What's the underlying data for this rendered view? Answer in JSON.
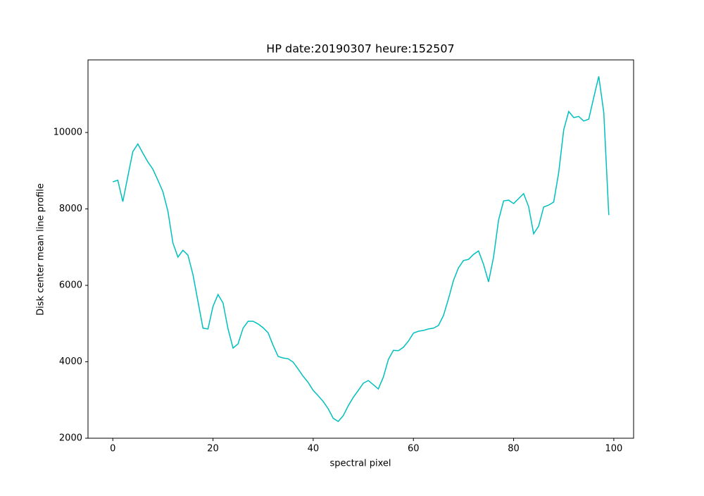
{
  "chart_data": {
    "type": "line",
    "title": "HP date:20190307 heure:152507",
    "x_label": "spectral pixel",
    "y_label": "Disk center mean line profile",
    "x": [
      0,
      1,
      2,
      3,
      4,
      5,
      6,
      7,
      8,
      9,
      10,
      11,
      12,
      13,
      14,
      15,
      16,
      17,
      18,
      19,
      20,
      21,
      22,
      23,
      24,
      25,
      26,
      27,
      28,
      29,
      30,
      31,
      32,
      33,
      34,
      35,
      36,
      37,
      38,
      39,
      40,
      41,
      42,
      43,
      44,
      45,
      46,
      47,
      48,
      49,
      50,
      51,
      52,
      53,
      54,
      55,
      56,
      57,
      58,
      59,
      60,
      61,
      62,
      63,
      64,
      65,
      66,
      67,
      68,
      69,
      70,
      71,
      72,
      73,
      74,
      75,
      76,
      77,
      78,
      79,
      80,
      81,
      82,
      83,
      84,
      85,
      86,
      87,
      88,
      89,
      90,
      91,
      92,
      93,
      94,
      95,
      96,
      97,
      98,
      99
    ],
    "series": [
      {
        "color": "#00bfbf",
        "values": [
          8710,
          8750,
          8190,
          8850,
          9500,
          9700,
          9460,
          9230,
          9040,
          8750,
          8450,
          7940,
          7110,
          6740,
          6920,
          6790,
          6280,
          5580,
          4880,
          4860,
          5450,
          5760,
          5540,
          4860,
          4360,
          4470,
          4880,
          5060,
          5060,
          4990,
          4890,
          4760,
          4430,
          4140,
          4100,
          4080,
          3990,
          3810,
          3620,
          3460,
          3250,
          3110,
          2960,
          2770,
          2520,
          2440,
          2590,
          2850,
          3070,
          3250,
          3440,
          3510,
          3400,
          3290,
          3600,
          4060,
          4300,
          4290,
          4380,
          4540,
          4750,
          4800,
          4820,
          4860,
          4880,
          4950,
          5210,
          5650,
          6130,
          6460,
          6650,
          6680,
          6810,
          6900,
          6550,
          6090,
          6740,
          7710,
          8210,
          8230,
          8140,
          8270,
          8400,
          8060,
          7350,
          7550,
          8050,
          8100,
          8180,
          8950,
          10070,
          10550,
          10390,
          10420,
          10300,
          10350,
          10920,
          11470,
          10520,
          7840
        ]
      }
    ],
    "xlim": [
      -4.95,
      103.95
    ],
    "xticks": [
      0,
      20,
      40,
      60,
      80,
      100
    ],
    "ylim": [
      2000,
      11900
    ],
    "yticks": [
      2000,
      4000,
      6000,
      8000,
      10000
    ]
  }
}
